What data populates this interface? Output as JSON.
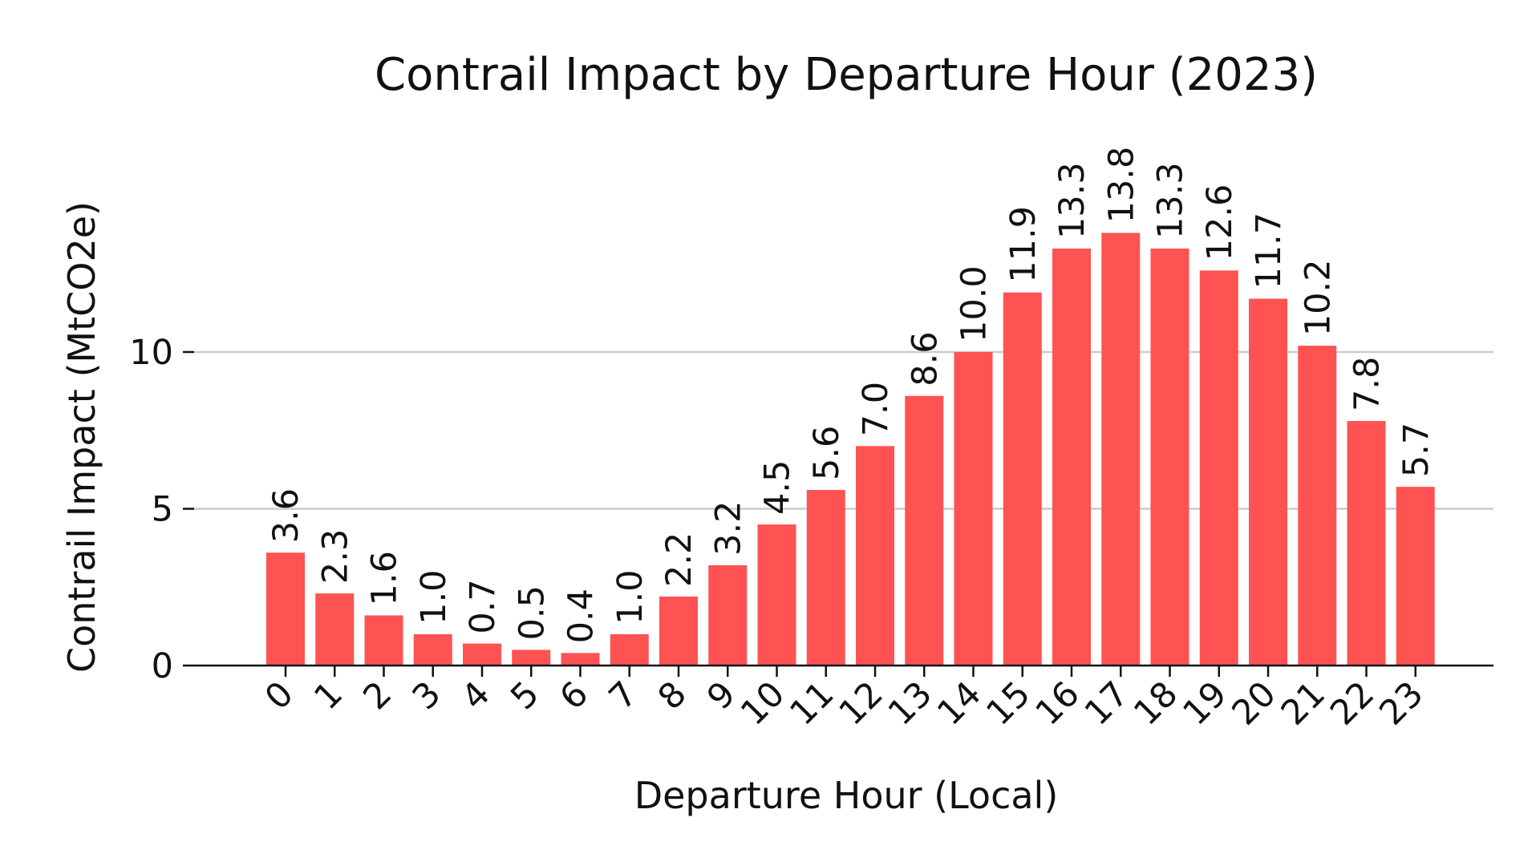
{
  "chart_data": {
    "type": "bar",
    "title": "Contrail Impact by Departure Hour (2023)",
    "xlabel": "Departure Hour (Local)",
    "ylabel": "Contrail Impact (MtCO2e)",
    "categories": [
      "0",
      "1",
      "2",
      "3",
      "4",
      "5",
      "6",
      "7",
      "8",
      "9",
      "10",
      "11",
      "12",
      "13",
      "14",
      "15",
      "16",
      "17",
      "18",
      "19",
      "20",
      "21",
      "22",
      "23"
    ],
    "values": [
      3.6,
      2.3,
      1.6,
      1.0,
      0.7,
      0.5,
      0.4,
      1.0,
      2.2,
      3.2,
      4.5,
      5.6,
      7.0,
      8.6,
      10.0,
      11.9,
      13.3,
      13.8,
      13.3,
      12.6,
      11.7,
      10.2,
      7.8,
      5.7
    ],
    "data_labels": [
      "3.6",
      "2.3",
      "1.6",
      "1.0",
      "0.7",
      "0.5",
      "0.4",
      "1.0",
      "2.2",
      "3.2",
      "4.5",
      "5.6",
      "7.0",
      "8.6",
      "10.0",
      "11.9",
      "13.3",
      "13.8",
      "13.3",
      "12.6",
      "11.7",
      "10.2",
      "7.8",
      "5.7"
    ],
    "yticks": [
      0,
      5,
      10
    ],
    "ytick_labels": [
      "0",
      "5",
      "10"
    ],
    "ylim": [
      0,
      14.5
    ],
    "grid": "horizontal",
    "legend": "none",
    "bar_color": "#ff5252",
    "grid_color": "#cccccc",
    "axis_color": "#111111"
  }
}
